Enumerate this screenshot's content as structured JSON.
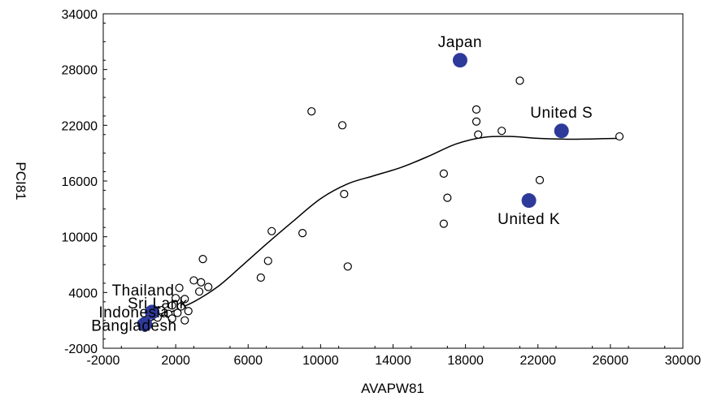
{
  "chart_data": {
    "type": "scatter",
    "xlabel": "AVAPW81",
    "ylabel": "PCI81",
    "xlim": [
      -2000,
      30000
    ],
    "ylim": [
      -2000,
      34000
    ],
    "x_ticks": [
      "-2000",
      "2000",
      "6000",
      "10000",
      "14000",
      "18000",
      "22000",
      "26000",
      "30000"
    ],
    "y_ticks": [
      "34000",
      "28000",
      "22000",
      "16000",
      "10000",
      "4000",
      "-2000"
    ],
    "grid": false,
    "series": [
      {
        "points": [
          {
            "x": 9500,
            "y": 23500
          },
          {
            "x": 11200,
            "y": 22000
          },
          {
            "x": 11300,
            "y": 14600
          },
          {
            "x": 11500,
            "y": 6800
          },
          {
            "x": 7300,
            "y": 10600
          },
          {
            "x": 9000,
            "y": 10400
          },
          {
            "x": 7100,
            "y": 7400
          },
          {
            "x": 6700,
            "y": 5600
          },
          {
            "x": 3500,
            "y": 7600
          },
          {
            "x": 3000,
            "y": 5300
          },
          {
            "x": 3400,
            "y": 5100
          },
          {
            "x": 3800,
            "y": 4600
          },
          {
            "x": 3300,
            "y": 4100
          },
          {
            "x": 2200,
            "y": 4500
          },
          {
            "x": 2000,
            "y": 3400
          },
          {
            "x": 2500,
            "y": 3300
          },
          {
            "x": 1800,
            "y": 2600
          },
          {
            "x": 2300,
            "y": 2500
          },
          {
            "x": 1200,
            "y": 2100
          },
          {
            "x": 1600,
            "y": 1700
          },
          {
            "x": 2100,
            "y": 1800
          },
          {
            "x": 2700,
            "y": 2000
          },
          {
            "x": 1000,
            "y": 1300
          },
          {
            "x": 1800,
            "y": 1200
          },
          {
            "x": 2500,
            "y": 1000
          },
          {
            "x": 400,
            "y": 600
          },
          {
            "x": 200,
            "y": 400
          },
          {
            "x": 100,
            "y": 700
          },
          {
            "x": 300,
            "y": 200
          },
          {
            "x": 16800,
            "y": 16800
          },
          {
            "x": 17000,
            "y": 14200
          },
          {
            "x": 16800,
            "y": 11400
          },
          {
            "x": 18600,
            "y": 23700
          },
          {
            "x": 18600,
            "y": 22400
          },
          {
            "x": 18700,
            "y": 21000
          },
          {
            "x": 20000,
            "y": 21400
          },
          {
            "x": 21000,
            "y": 26800
          },
          {
            "x": 22100,
            "y": 16100
          },
          {
            "x": 26500,
            "y": 20800
          }
        ]
      },
      {
        "highlighted": true,
        "points": [
          {
            "label": "Japan",
            "x": 17700,
            "y": 29000
          },
          {
            "label": "United S",
            "x": 23300,
            "y": 21400
          },
          {
            "label": "United K",
            "x": 21500,
            "y": 13900
          },
          {
            "label": "",
            "x": 700,
            "y": 1900
          },
          {
            "label": "",
            "x": 300,
            "y": 600
          }
        ]
      }
    ],
    "text_labels": [
      {
        "label": "Thailand",
        "x": 200,
        "y": 3700
      },
      {
        "label": "Sri Lank",
        "x": 1000,
        "y": 2300
      },
      {
        "label": "Indonesia",
        "x": -300,
        "y": 1300
      },
      {
        "label": "Bangladesh",
        "x": -300,
        "y": -100
      }
    ],
    "fit_line": [
      {
        "x": 300,
        "y": 700
      },
      {
        "x": 1500,
        "y": 1700
      },
      {
        "x": 3000,
        "y": 3000
      },
      {
        "x": 4300,
        "y": 4600
      },
      {
        "x": 5500,
        "y": 6600
      },
      {
        "x": 7000,
        "y": 9200
      },
      {
        "x": 8500,
        "y": 11700
      },
      {
        "x": 10000,
        "y": 14100
      },
      {
        "x": 11500,
        "y": 15700
      },
      {
        "x": 13000,
        "y": 16600
      },
      {
        "x": 14500,
        "y": 17500
      },
      {
        "x": 16000,
        "y": 18700
      },
      {
        "x": 17500,
        "y": 20000
      },
      {
        "x": 19000,
        "y": 20700
      },
      {
        "x": 20500,
        "y": 20800
      },
      {
        "x": 22000,
        "y": 20600
      },
      {
        "x": 24000,
        "y": 20500
      },
      {
        "x": 26500,
        "y": 20600
      }
    ],
    "colors": {
      "highlight": "#2e3a9a",
      "open_marker_stroke": "#000000",
      "fit_line": "#000000"
    }
  }
}
